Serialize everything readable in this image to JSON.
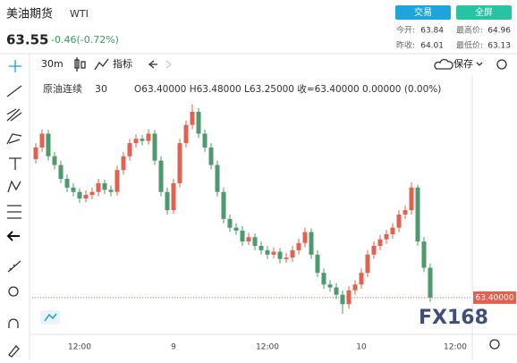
{
  "header": {
    "title": "美油期货",
    "symbol": "WTI",
    "price": "63.55",
    "change": "-0.46(-0.72%)",
    "trade_button": "交易",
    "fullscreen_button": "全屏",
    "stats": [
      {
        "label": "今开:",
        "value": "63.84"
      },
      {
        "label": "最高价:",
        "value": "64.96"
      },
      {
        "label": "昨收:",
        "value": "64.01"
      },
      {
        "label": "最低价:",
        "value": "63.13"
      }
    ]
  },
  "toolbar": {
    "interval": "30m",
    "indicators": "指标",
    "save": "保存"
  },
  "legend": {
    "name": "原油连续",
    "interval": "30",
    "ohlc": "O63.40000 H63.48000 L63.25000 收=63.40000 0.00000 (0.00%)"
  },
  "watermark": "FX168",
  "chart_data": {
    "type": "candlestick",
    "up_color": "#e0624f",
    "down_color": "#4e9a6e",
    "ylim": [
      62.92,
      66.38
    ],
    "last_price": {
      "value": 63.4,
      "label": "63.40000"
    },
    "last_price_color": "#e0624f",
    "categories": [
      null,
      null,
      null,
      null,
      null,
      null,
      null,
      "12:00",
      null,
      null,
      null,
      null,
      null,
      null,
      null,
      null,
      null,
      null,
      null,
      null,
      null,
      null,
      "9",
      null,
      null,
      null,
      null,
      null,
      null,
      null,
      null,
      null,
      null,
      null,
      null,
      null,
      null,
      "12:00",
      null,
      null,
      null,
      null,
      null,
      null,
      null,
      null,
      null,
      null,
      null,
      null,
      null,
      null,
      "10",
      null,
      null,
      null,
      null,
      null,
      null,
      null,
      null,
      null,
      null,
      null,
      null,
      null,
      null,
      "12:00",
      null,
      null
    ],
    "open": [
      65.3,
      65.46,
      65.65,
      65.34,
      65.22,
      65.03,
      64.91,
      64.85,
      64.76,
      64.81,
      64.85,
      64.97,
      64.88,
      64.85,
      65.15,
      65.34,
      65.52,
      65.58,
      65.55,
      65.65,
      65.28,
      64.85,
      64.6,
      64.97,
      65.52,
      65.77,
      65.95,
      65.65,
      65.46,
      65.22,
      64.85,
      64.48,
      64.36,
      64.32,
      64.17,
      64.23,
      64.11,
      64.05,
      63.99,
      64.03,
      63.93,
      63.95,
      64.05,
      64.15,
      64.3,
      63.99,
      63.74,
      63.58,
      63.54,
      63.44,
      63.31,
      63.5,
      63.58,
      63.74,
      63.99,
      64.11,
      64.2,
      64.27,
      64.36,
      64.54,
      64.6,
      64.91,
      64.17,
      63.81,
      null,
      null,
      null,
      null,
      null,
      null
    ],
    "high": [
      65.52,
      65.71,
      65.7,
      65.4,
      65.28,
      65.09,
      64.97,
      64.9,
      64.87,
      64.91,
      65.03,
      65.02,
      64.94,
      65.21,
      65.4,
      65.58,
      65.64,
      65.63,
      65.71,
      65.7,
      65.34,
      64.91,
      65.03,
      65.58,
      65.83,
      66.05,
      66.0,
      65.71,
      65.52,
      65.28,
      64.91,
      64.54,
      64.42,
      64.38,
      64.29,
      64.28,
      64.17,
      64.11,
      64.09,
      64.08,
      64.01,
      64.11,
      64.21,
      64.36,
      64.35,
      64.05,
      63.8,
      63.64,
      63.6,
      63.5,
      63.56,
      63.64,
      63.8,
      64.05,
      64.17,
      64.26,
      64.33,
      64.42,
      64.6,
      64.66,
      64.98,
      64.95,
      64.23,
      63.87,
      null,
      null,
      null,
      null,
      null,
      null
    ],
    "low": [
      65.24,
      65.4,
      65.28,
      65.16,
      64.97,
      64.85,
      64.79,
      64.7,
      64.71,
      64.75,
      64.79,
      64.82,
      64.79,
      64.8,
      65.09,
      65.28,
      65.46,
      65.49,
      65.5,
      65.22,
      64.79,
      64.54,
      64.55,
      64.91,
      65.46,
      65.71,
      65.59,
      65.4,
      65.16,
      64.79,
      64.42,
      64.3,
      64.26,
      64.11,
      64.12,
      64.05,
      63.99,
      63.93,
      63.94,
      63.87,
      63.88,
      63.89,
      63.99,
      64.09,
      63.93,
      63.68,
      63.52,
      63.48,
      63.38,
      63.18,
      63.25,
      63.44,
      63.52,
      63.68,
      63.93,
      64.05,
      64.14,
      64.21,
      64.3,
      64.48,
      64.54,
      64.11,
      63.75,
      63.34,
      null,
      null,
      null,
      null,
      null,
      null
    ],
    "close": [
      65.46,
      65.65,
      65.34,
      65.22,
      65.03,
      64.91,
      64.85,
      64.76,
      64.81,
      64.85,
      64.97,
      64.88,
      64.85,
      65.15,
      65.34,
      65.52,
      65.58,
      65.55,
      65.65,
      65.28,
      64.85,
      64.6,
      64.97,
      65.52,
      65.77,
      65.95,
      65.65,
      65.46,
      65.22,
      64.85,
      64.48,
      64.36,
      64.32,
      64.17,
      64.23,
      64.11,
      64.05,
      63.99,
      64.03,
      63.93,
      63.95,
      64.05,
      64.15,
      64.3,
      63.99,
      63.74,
      63.58,
      63.54,
      63.44,
      63.31,
      63.5,
      63.58,
      63.74,
      63.99,
      64.11,
      64.2,
      64.27,
      64.36,
      64.54,
      64.6,
      64.91,
      64.17,
      63.81,
      63.4,
      null,
      null,
      null,
      null,
      null,
      null
    ]
  }
}
